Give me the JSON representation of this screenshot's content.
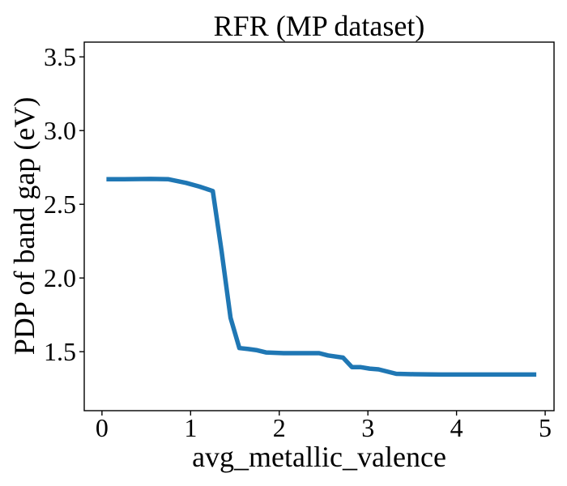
{
  "chart_data": {
    "type": "line",
    "title": "RFR (MP dataset)",
    "xlabel": "avg_metallic_valence",
    "ylabel": "PDP of band gap (eV)",
    "xlim": [
      -0.2,
      5.1
    ],
    "ylim": [
      1.1,
      3.6
    ],
    "xticks": [
      0,
      1,
      2,
      3,
      4,
      5
    ],
    "xtick_labels": [
      "0",
      "1",
      "2",
      "3",
      "4",
      "5"
    ],
    "yticks": [
      1.5,
      2.0,
      2.5,
      3.0,
      3.5
    ],
    "ytick_labels": [
      "1.5",
      "2.0",
      "2.5",
      "3.0",
      "3.5"
    ],
    "grid": false,
    "series": [
      {
        "color": "#1f77b4",
        "x": [
          0.05,
          0.25,
          0.55,
          0.75,
          0.95,
          1.1,
          1.25,
          1.35,
          1.45,
          1.55,
          1.65,
          1.75,
          1.85,
          2.05,
          2.25,
          2.45,
          2.55,
          2.72,
          2.82,
          2.92,
          3.02,
          3.12,
          3.32,
          3.52,
          3.82,
          4.12,
          4.52,
          4.9
        ],
        "y": [
          2.67,
          2.67,
          2.672,
          2.67,
          2.645,
          2.62,
          2.59,
          2.18,
          1.73,
          1.525,
          1.518,
          1.51,
          1.495,
          1.49,
          1.49,
          1.49,
          1.475,
          1.46,
          1.395,
          1.395,
          1.385,
          1.38,
          1.35,
          1.347,
          1.345,
          1.345,
          1.345,
          1.345
        ]
      }
    ]
  }
}
